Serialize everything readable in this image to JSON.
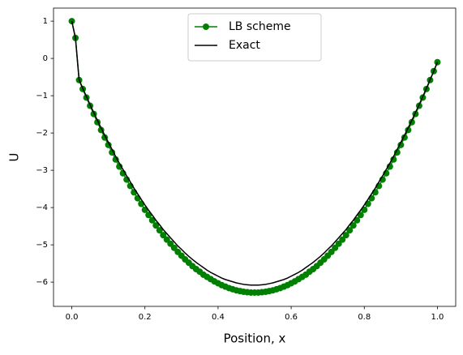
{
  "chart_data": {
    "type": "line",
    "xlabel": "Position, x",
    "ylabel": "U",
    "x": [
      0,
      0.01,
      0.02,
      0.03,
      0.04,
      0.05,
      0.06,
      0.07,
      0.08,
      0.09,
      0.1,
      0.11,
      0.12,
      0.13,
      0.14,
      0.15,
      0.16,
      0.17,
      0.18,
      0.19,
      0.2,
      0.21,
      0.22,
      0.23,
      0.24,
      0.25,
      0.26,
      0.27,
      0.28,
      0.29,
      0.3,
      0.31,
      0.32,
      0.33,
      0.34,
      0.35,
      0.36,
      0.37,
      0.38,
      0.39,
      0.4,
      0.41,
      0.42,
      0.43,
      0.44,
      0.45,
      0.46,
      0.47,
      0.48,
      0.49,
      0.5,
      0.51,
      0.52,
      0.53,
      0.54,
      0.55,
      0.56,
      0.57,
      0.58,
      0.59,
      0.6,
      0.61,
      0.62,
      0.63,
      0.64,
      0.65,
      0.66,
      0.67,
      0.68,
      0.69,
      0.7,
      0.71,
      0.72,
      0.73,
      0.74,
      0.75,
      0.76,
      0.77,
      0.78,
      0.79,
      0.8,
      0.81,
      0.82,
      0.83,
      0.84,
      0.85,
      0.86,
      0.87,
      0.88,
      0.89,
      0.9,
      0.91,
      0.92,
      0.93,
      0.94,
      0.95,
      0.96,
      0.97,
      0.98,
      0.99,
      1
    ],
    "series": [
      {
        "name": "LB scheme",
        "color": "#008000",
        "marker": true,
        "values": [
          1,
          0.55,
          -0.58,
          -0.82,
          -1.05,
          -1.27,
          -1.49,
          -1.71,
          -1.92,
          -2.12,
          -2.32,
          -2.52,
          -2.71,
          -2.9,
          -3.08,
          -3.25,
          -3.42,
          -3.59,
          -3.75,
          -3.9,
          -4.06,
          -4.2,
          -4.34,
          -4.48,
          -4.61,
          -4.74,
          -4.86,
          -4.97,
          -5.08,
          -5.19,
          -5.29,
          -5.39,
          -5.48,
          -5.57,
          -5.65,
          -5.72,
          -5.8,
          -5.86,
          -5.92,
          -5.98,
          -6.03,
          -6.08,
          -6.12,
          -6.16,
          -6.19,
          -6.22,
          -6.24,
          -6.26,
          -6.27,
          -6.28,
          -6.28,
          -6.28,
          -6.27,
          -6.26,
          -6.24,
          -6.22,
          -6.19,
          -6.16,
          -6.12,
          -6.08,
          -6.03,
          -5.98,
          -5.92,
          -5.86,
          -5.8,
          -5.72,
          -5.65,
          -5.57,
          -5.48,
          -5.39,
          -5.29,
          -5.19,
          -5.08,
          -4.97,
          -4.86,
          -4.74,
          -4.61,
          -4.48,
          -4.34,
          -4.2,
          -4.06,
          -3.9,
          -3.75,
          -3.59,
          -3.42,
          -3.25,
          -3.08,
          -2.9,
          -2.71,
          -2.52,
          -2.32,
          -2.12,
          -1.92,
          -1.71,
          -1.49,
          -1.27,
          -1.05,
          -0.82,
          -0.58,
          -0.34,
          -0.1
        ]
      },
      {
        "name": "Exact",
        "color": "#000000",
        "marker": false,
        "values": [
          1,
          0.55,
          -0.57,
          -0.8,
          -1.02,
          -1.24,
          -1.45,
          -1.66,
          -1.86,
          -2.06,
          -2.25,
          -2.44,
          -2.63,
          -2.81,
          -2.98,
          -3.15,
          -3.31,
          -3.48,
          -3.63,
          -3.78,
          -3.93,
          -4.07,
          -4.2,
          -4.34,
          -4.46,
          -4.59,
          -4.7,
          -4.81,
          -4.92,
          -5.03,
          -5.12,
          -5.22,
          -5.31,
          -5.39,
          -5.47,
          -5.54,
          -5.61,
          -5.68,
          -5.74,
          -5.79,
          -5.84,
          -5.89,
          -5.93,
          -5.96,
          -5.99,
          -6.02,
          -6.04,
          -6.06,
          -6.07,
          -6.08,
          -6.08,
          -6.08,
          -6.07,
          -6.06,
          -6.04,
          -6.02,
          -5.99,
          -5.96,
          -5.93,
          -5.89,
          -5.84,
          -5.79,
          -5.74,
          -5.68,
          -5.61,
          -5.54,
          -5.47,
          -5.39,
          -5.31,
          -5.22,
          -5.12,
          -5.03,
          -4.92,
          -4.81,
          -4.7,
          -4.59,
          -4.46,
          -4.34,
          -4.2,
          -4.07,
          -3.93,
          -3.78,
          -3.63,
          -3.48,
          -3.31,
          -3.15,
          -2.98,
          -2.81,
          -2.63,
          -2.44,
          -2.25,
          -2.06,
          -1.86,
          -1.66,
          -1.45,
          -1.24,
          -1.02,
          -0.8,
          -0.57,
          -0.34,
          -0.1
        ]
      }
    ],
    "xlim": [
      -0.05,
      1.05
    ],
    "ylim": [
      -6.65,
      1.35
    ],
    "xticks": [
      {
        "value": 0,
        "label": "0.0"
      },
      0.2,
      0.4,
      0.6,
      0.8,
      {
        "value": 1,
        "label": "1.0"
      }
    ],
    "yticks": [
      {
        "value": -6,
        "label": "−6"
      },
      {
        "value": -5,
        "label": "−5"
      },
      {
        "value": -4,
        "label": "−4"
      },
      {
        "value": -3,
        "label": "−3"
      },
      {
        "value": -2,
        "label": "−2"
      },
      {
        "value": -1,
        "label": "−1"
      },
      0,
      1
    ],
    "grid": false,
    "legend": "upper center"
  }
}
